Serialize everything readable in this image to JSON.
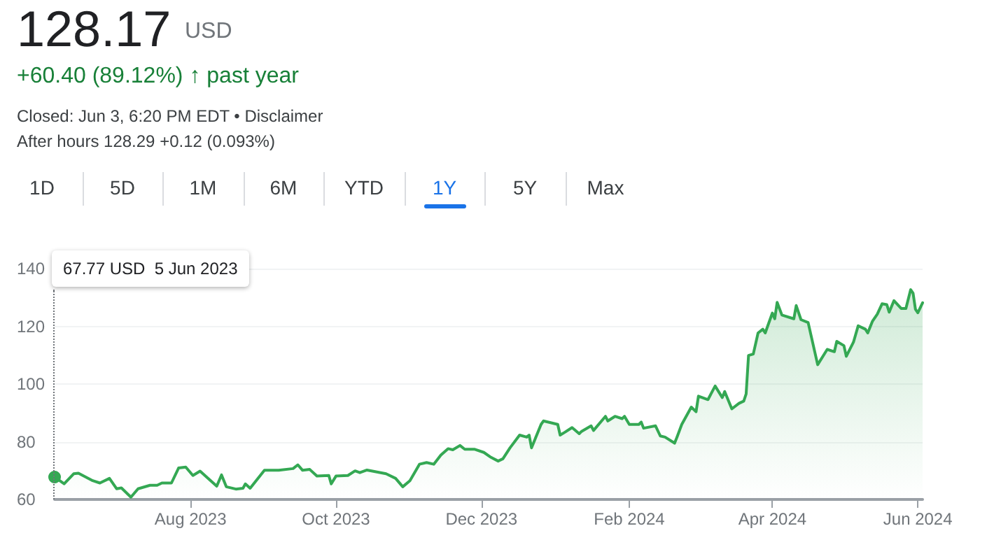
{
  "chart_data": {
    "type": "area",
    "title": "128.17",
    "subtitle": "+60.40 (89.12%) ↑ past year",
    "annotations": [
      "USD",
      "Closed: Jun 3, 6:20 PM EDT • Disclaimer",
      "After hours 128.29 +0.12 (0.093%)",
      "1D",
      "5D",
      "1M",
      "6M",
      "YTD",
      "1Y",
      "5Y",
      "Max",
      "67.77 USD  5 Jun 2023"
    ],
    "x": [
      "2023-06-05",
      "2023-06-09",
      "2023-06-13",
      "2023-06-15",
      "2023-06-21",
      "2023-06-24",
      "2023-06-28",
      "2023-07-01",
      "2023-07-03",
      "2023-07-07",
      "2023-07-10",
      "2023-07-15",
      "2023-07-18",
      "2023-07-20",
      "2023-07-24",
      "2023-07-27",
      "2023-07-30",
      "2023-08-02",
      "2023-08-05",
      "2023-08-08",
      "2023-08-12",
      "2023-08-14",
      "2023-08-16",
      "2023-08-20",
      "2023-08-23",
      "2023-08-24",
      "2023-08-26",
      "2023-09-01",
      "2023-09-07",
      "2023-09-13",
      "2023-09-15",
      "2023-09-17",
      "2023-09-20",
      "2023-09-23",
      "2023-09-28",
      "2023-09-29",
      "2023-10-01",
      "2023-10-06",
      "2023-10-09",
      "2023-10-11",
      "2023-10-14",
      "2023-10-22",
      "2023-10-26",
      "2023-10-29",
      "2023-11-01",
      "2023-11-05",
      "2023-11-08",
      "2023-11-11",
      "2023-11-14",
      "2023-11-17",
      "2023-11-19",
      "2023-11-22",
      "2023-11-24",
      "2023-11-28",
      "2023-12-02",
      "2023-12-05",
      "2023-12-08",
      "2023-12-10",
      "2023-12-13",
      "2023-12-17",
      "2023-12-20",
      "2023-12-21",
      "2023-12-22",
      "2023-12-26",
      "2023-12-27",
      "2024-01-02",
      "2024-01-03",
      "2024-01-05",
      "2024-01-08",
      "2024-01-11",
      "2024-01-12",
      "2024-01-16",
      "2024-01-17",
      "2024-01-22",
      "2024-01-23",
      "2024-01-26",
      "2024-01-29",
      "2024-01-30",
      "2024-02-01",
      "2024-02-05",
      "2024-02-06",
      "2024-02-07",
      "2024-02-12",
      "2024-02-14",
      "2024-02-16",
      "2024-02-20",
      "2024-02-21",
      "2024-02-23",
      "2024-02-27",
      "2024-02-29",
      "2024-03-01",
      "2024-03-05",
      "2024-03-08",
      "2024-03-11",
      "2024-03-12",
      "2024-03-15",
      "2024-03-18",
      "2024-03-20",
      "2024-03-21",
      "2024-03-22",
      "2024-03-24",
      "2024-03-26",
      "2024-03-28",
      "2024-03-29",
      "2024-04-01",
      "2024-04-02",
      "2024-04-03",
      "2024-04-05",
      "2024-04-10",
      "2024-04-11",
      "2024-04-13",
      "2024-04-16",
      "2024-04-20",
      "2024-04-24",
      "2024-04-27",
      "2024-04-28",
      "2024-05-01",
      "2024-05-02",
      "2024-05-05",
      "2024-05-07",
      "2024-05-10",
      "2024-05-11",
      "2024-05-13",
      "2024-05-15",
      "2024-05-17",
      "2024-05-19",
      "2024-05-20",
      "2024-05-22",
      "2024-05-25",
      "2024-05-27",
      "2024-05-29",
      "2024-05-30",
      "2024-05-31",
      "2024-06-01",
      "2024-06-03"
    ],
    "values": [
      67.77,
      65.4,
      68.9,
      69.1,
      66.5,
      65.7,
      67.3,
      63.7,
      64,
      60.8,
      63.7,
      64.9,
      64.9,
      65.7,
      65.7,
      70.9,
      71.2,
      68.3,
      69.8,
      67.6,
      64.6,
      68.5,
      64.4,
      63.6,
      63.9,
      65.4,
      63.9,
      70.1,
      70.1,
      70.7,
      72,
      70.1,
      70.4,
      68.1,
      68.3,
      65.4,
      68.1,
      68.3,
      69.9,
      69.3,
      70.2,
      68.9,
      67.3,
      64.4,
      66.5,
      72.2,
      72.8,
      72.2,
      75.4,
      77.6,
      77.2,
      78.7,
      77.4,
      77.4,
      76.3,
      74.6,
      73.3,
      74.1,
      77.9,
      82.3,
      81.6,
      82.3,
      77.9,
      86,
      87.2,
      86,
      82.3,
      83.3,
      84.9,
      82.8,
      83.6,
      85.5,
      83.9,
      88.8,
      87.2,
      88.8,
      88,
      88.8,
      86,
      86,
      86.8,
      84.7,
      85.5,
      82,
      81.6,
      79.5,
      81.6,
      86,
      92,
      90.4,
      95.8,
      94.6,
      99.3,
      95.3,
      97.4,
      91.4,
      93.3,
      94.1,
      96.6,
      109.9,
      110.4,
      117.7,
      119,
      117.7,
      124.6,
      122.6,
      128.3,
      123.9,
      122.6,
      127.2,
      122.3,
      121.3,
      106.7,
      112,
      111.2,
      114.8,
      113.3,
      109.6,
      114.5,
      120.2,
      119,
      117.7,
      121.8,
      124.2,
      127.8,
      127.5,
      124.9,
      128.9,
      126.2,
      126.2,
      132.7,
      131.5,
      125.9,
      124.7,
      128.17
    ],
    "color": "#34a853",
    "xlim": [
      "2023-06-05",
      "2024-06-03"
    ],
    "xticks": [
      {
        "value": "2023-08-01",
        "label": "Aug 2023"
      },
      {
        "value": "2023-10-01",
        "label": "Oct 2023"
      },
      {
        "value": "2023-12-01",
        "label": "Dec 2023"
      },
      {
        "value": "2024-02-01",
        "label": "Feb 2024"
      },
      {
        "value": "2024-04-01",
        "label": "Apr 2024"
      },
      {
        "value": "2024-06-01",
        "label": "Jun 2024"
      }
    ],
    "ylim": [
      60,
      140
    ],
    "yticks": [
      60,
      80,
      100,
      120,
      140
    ],
    "grid": "y",
    "marker": "none",
    "line_style": "solid"
  }
}
